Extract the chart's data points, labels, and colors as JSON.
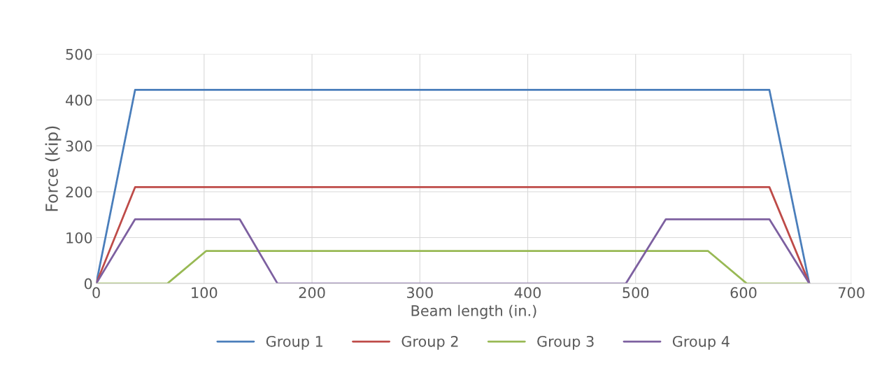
{
  "chart_data": {
    "type": "line",
    "xlabel": "Beam length (in.)",
    "ylabel": "Force (kip)",
    "xlim": [
      0,
      700
    ],
    "xticks": [
      0,
      100,
      200,
      300,
      400,
      500,
      600,
      700
    ],
    "ylim": [
      0,
      500
    ],
    "yticks": [
      0,
      100,
      200,
      300,
      400,
      500
    ],
    "grid": true,
    "legend": "bottom",
    "marker": "none",
    "line_style": "solid",
    "series": [
      {
        "name": "Group 1",
        "color": "#4a7ebb",
        "x": [
          0,
          36,
          624,
          661
        ],
        "values": [
          0,
          422,
          422,
          0
        ]
      },
      {
        "name": "Group 2",
        "color": "#be4b48",
        "x": [
          0,
          36,
          624,
          661
        ],
        "values": [
          0,
          210,
          210,
          0
        ]
      },
      {
        "name": "Group 3",
        "color": "#98b954",
        "x": [
          0,
          66,
          102,
          567,
          603,
          661
        ],
        "values": [
          0,
          0,
          71,
          71,
          0,
          0
        ]
      },
      {
        "name": "Group 4",
        "color": "#7d60a0",
        "x": [
          0,
          36,
          133,
          168,
          491,
          528,
          624,
          661
        ],
        "values": [
          0,
          140,
          140,
          0,
          0,
          140,
          140,
          0
        ]
      }
    ]
  }
}
